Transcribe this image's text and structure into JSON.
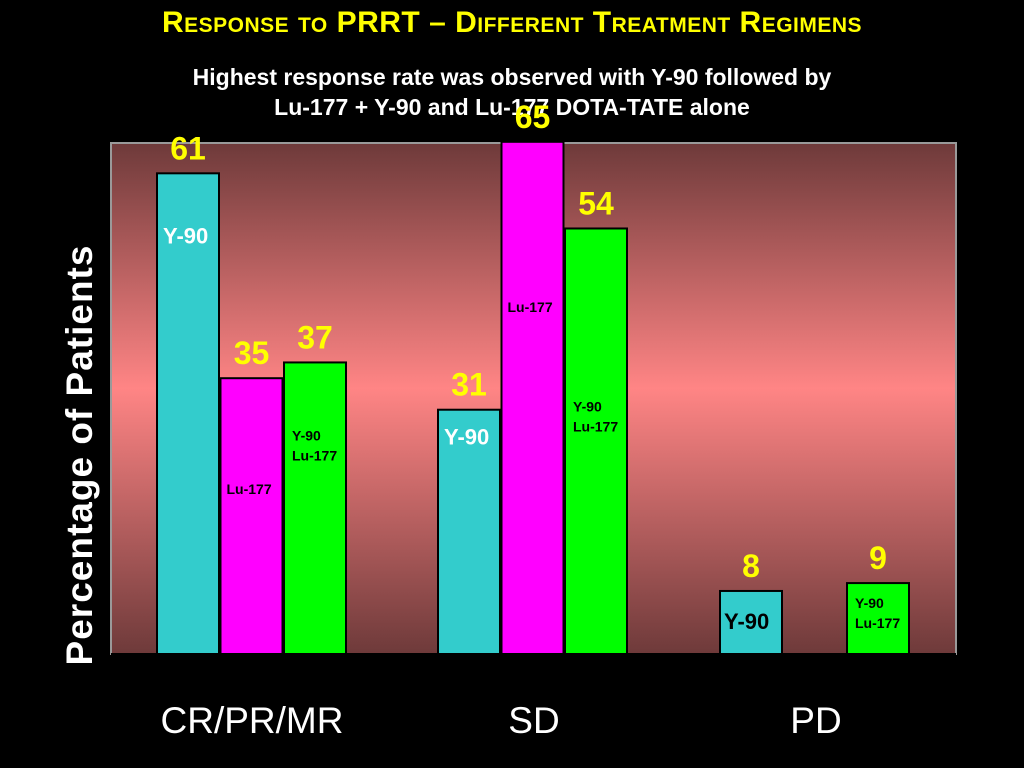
{
  "chart_data": {
    "type": "bar",
    "title": "Response to PRRT – Different Treatment Regimens",
    "subtitle": [
      "Highest response rate was observed with Y-90 followed by",
      "Lu-177 + Y-90 and Lu-177 DOTA-TATE alone"
    ],
    "ylabel": "Percentage of Patients",
    "xlabel": "",
    "ylim": [
      0,
      70
    ],
    "categories": [
      "CR/PR/MR",
      "SD",
      "PD"
    ],
    "series": [
      {
        "name": "Y-90",
        "color": "#33cccc",
        "values": [
          61,
          31,
          8
        ]
      },
      {
        "name": "Lu-177",
        "color": "#ff00ff",
        "values": [
          35,
          65,
          null
        ]
      },
      {
        "name": "Y-90 Lu-177",
        "color": "#00ff00",
        "values": [
          37,
          54,
          9
        ]
      }
    ],
    "bar_labels": [
      [
        "Y-90",
        "Lu-177",
        "Y-90\nLu-177"
      ],
      [
        "Y-90",
        "Lu-177",
        "Y-90\nLu-177"
      ],
      [
        "Y-90",
        null,
        "Y-90\nLu-177"
      ]
    ],
    "value_label_color": "#ffff00",
    "plot_background": [
      "#6e3a3a",
      "#ff8585",
      "#6e3a3a"
    ],
    "grid": false,
    "legend": "none"
  }
}
